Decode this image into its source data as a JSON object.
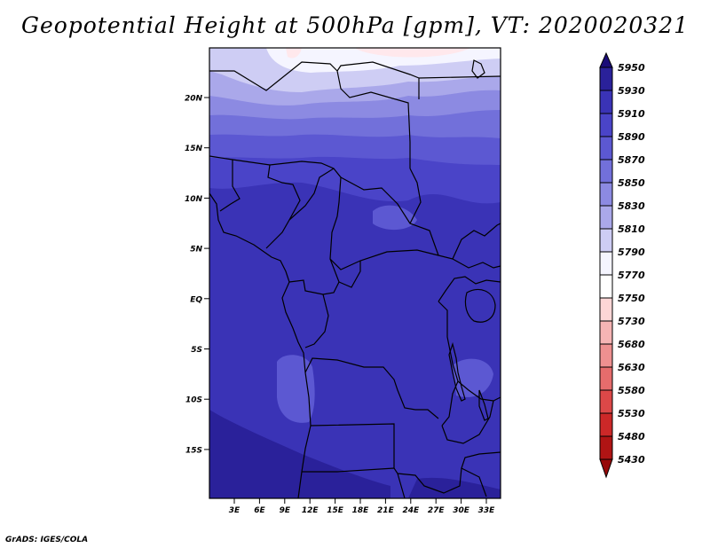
{
  "title": "Geopotential Height at 500hPa [gpm], VT: 2020020321",
  "footer": "GrADS: IGES/COLA",
  "map": {
    "lat_ticks": [
      "20N",
      "15N",
      "10N",
      "5N",
      "EQ",
      "5S",
      "10S",
      "15S"
    ],
    "lon_ticks": [
      "3E",
      "6E",
      "9E",
      "12E",
      "15E",
      "18E",
      "21E",
      "24E",
      "27E",
      "30E",
      "33E"
    ]
  },
  "legend": {
    "levels": [
      "5950",
      "5930",
      "5910",
      "5890",
      "5870",
      "5850",
      "5830",
      "5810",
      "5790",
      "5770",
      "5750",
      "5730",
      "5680",
      "5630",
      "5580",
      "5530",
      "5480",
      "5430"
    ],
    "colors": [
      "#1a0c78",
      "#2a219a",
      "#3a33b6",
      "#4a44c8",
      "#5c58d2",
      "#7270da",
      "#8c8ae2",
      "#aaa8ea",
      "#cecdf4",
      "#f5f5ff",
      "#ffffff",
      "#fdd6d6",
      "#f6b4b4",
      "#ee9090",
      "#e66c6c",
      "#dc4848",
      "#cc2828",
      "#b01414",
      "#960808"
    ]
  }
}
